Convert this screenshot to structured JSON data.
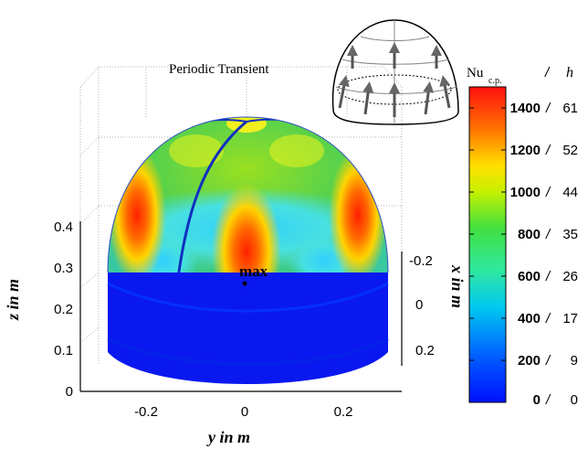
{
  "chart_data": {
    "type": "heatmap",
    "title": "Periodic Transient",
    "quantity_label": "Nu",
    "quantity_subscript": "c.p.",
    "secondary_quantity_label": "h",
    "separator": "/",
    "annotation": "max",
    "colorscale": "jet",
    "axes": {
      "y": {
        "label": "y in m",
        "range": [
          -0.35,
          0.35
        ],
        "ticks": [
          "-0.2",
          "0",
          "0.2"
        ]
      },
      "z": {
        "label": "z in m",
        "range": [
          0,
          0.45
        ],
        "ticks": [
          "0",
          "0.1",
          "0.2",
          "0.3",
          "0.4"
        ]
      },
      "x": {
        "label": "x in m",
        "ticks": [
          "-0.2",
          "0",
          "0.2"
        ]
      }
    },
    "colorbar": {
      "nu_ticks": [
        "1400",
        "1200",
        "1000",
        "800",
        "600",
        "400",
        "200",
        "0"
      ],
      "h_ticks": [
        "61",
        "52",
        "44",
        "35",
        "26",
        "17",
        "9",
        "0"
      ],
      "range": [
        0,
        1500
      ]
    }
  }
}
